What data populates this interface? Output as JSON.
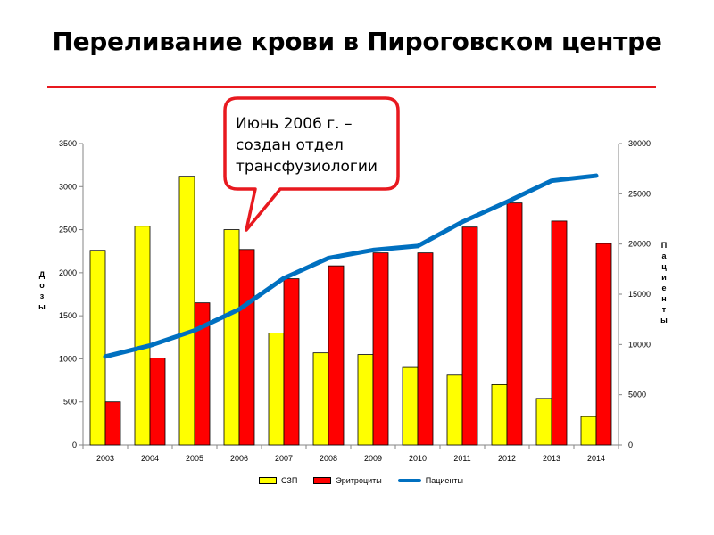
{
  "slide": {
    "title": "Переливание крови в Пироговском центре"
  },
  "callout": {
    "lines": [
      "Июнь 2006 г. –",
      "создан отдел",
      "трансфузиологии"
    ]
  },
  "chart_data": {
    "type": "bar",
    "categories": [
      "2003",
      "2004",
      "2005",
      "2006",
      "2007",
      "2008",
      "2009",
      "2010",
      "2011",
      "2012",
      "2013",
      "2014"
    ],
    "series": [
      {
        "name": "СЗП",
        "type": "bar",
        "axis": "left",
        "color": "#ffff00",
        "values": [
          2260,
          2540,
          3120,
          2500,
          1300,
          1070,
          1050,
          900,
          810,
          700,
          540,
          330
        ]
      },
      {
        "name": "Эритроциты",
        "type": "bar",
        "axis": "left",
        "color": "#ff0000",
        "values": [
          500,
          1010,
          1650,
          2270,
          1930,
          2080,
          2230,
          2230,
          2530,
          2810,
          2600,
          2340
        ]
      },
      {
        "name": "Пациенты",
        "type": "line",
        "axis": "right",
        "color": "#0070c0",
        "values": [
          8800,
          9900,
          11400,
          13500,
          16600,
          18600,
          19400,
          19800,
          22200,
          24200,
          26300,
          26800
        ]
      }
    ],
    "ylabel": "Дозы",
    "y2label": "Пациенты",
    "ylim": [
      0,
      3500
    ],
    "y2lim": [
      0,
      30000
    ],
    "yticks": [
      "0",
      "500",
      "1000",
      "1500",
      "2000",
      "2500",
      "3000",
      "3500"
    ],
    "y2ticks": [
      "0",
      "5000",
      "10000",
      "15000",
      "20000",
      "25000",
      "30000"
    ],
    "legend_position": "bottom",
    "grid": false
  }
}
